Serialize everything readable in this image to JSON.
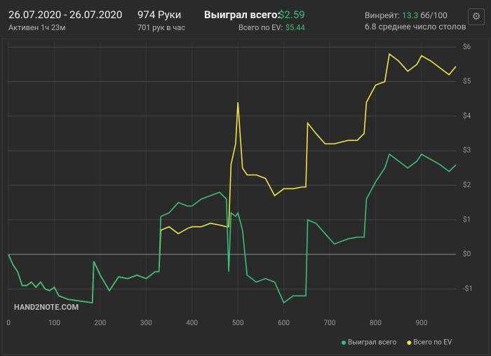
{
  "header": {
    "date_range": "26.07.2020 - 26.07.2020",
    "active": "Активен 1ч 23м",
    "hands": "974 Руки",
    "hands_per_hour": "701 рук в час",
    "won_label": "Выиграл всего:",
    "won_value": "$2.59",
    "ev_label": "Всего по EV:",
    "ev_value": "$5.44",
    "winrate_label": "Винрейт:",
    "winrate_value": "13.3",
    "winrate_unit": "бб/100",
    "tables": "6.8 среднее число столов",
    "watermark": "HAND2NOTE.COM"
  },
  "chart_data": {
    "type": "line",
    "x": [
      0,
      10,
      20,
      30,
      40,
      50,
      60,
      70,
      80,
      90,
      100,
      110,
      120,
      130,
      183,
      186,
      200,
      220,
      240,
      260,
      280,
      300,
      320,
      328,
      332,
      350,
      370,
      390,
      400,
      420,
      440,
      460,
      475,
      480,
      485,
      495,
      500,
      510,
      520,
      540,
      560,
      580,
      600,
      620,
      640,
      648,
      652,
      670,
      690,
      710,
      740,
      760,
      775,
      780,
      800,
      820,
      830,
      850,
      870,
      890,
      900,
      920,
      940,
      960,
      975
    ],
    "series": [
      {
        "name": "Всего по EV",
        "color": "#efe53d",
        "values": [
          0,
          -0.3,
          -0.5,
          -0.9,
          -0.9,
          -0.8,
          -0.95,
          -0.8,
          -1.0,
          -1.05,
          -0.95,
          -1.2,
          -1.25,
          -1.3,
          -1.4,
          -0.2,
          -0.6,
          -1.05,
          -0.65,
          -0.7,
          -0.6,
          -0.7,
          -0.5,
          -0.5,
          0.7,
          0.8,
          0.6,
          0.75,
          0.8,
          0.8,
          0.9,
          0.85,
          0.8,
          0.8,
          2.6,
          3.2,
          4.4,
          2.5,
          2.3,
          2.3,
          2.2,
          1.7,
          1.9,
          1.9,
          1.95,
          1.95,
          3.8,
          3.5,
          3.2,
          3.2,
          3.3,
          3.3,
          3.5,
          4.4,
          4.9,
          5.0,
          5.8,
          5.6,
          5.3,
          5.5,
          5.75,
          5.6,
          5.4,
          5.2,
          5.44
        ]
      },
      {
        "name": "Выиграл всего",
        "color": "#34c07a",
        "values": [
          0,
          -0.3,
          -0.5,
          -0.9,
          -0.9,
          -0.8,
          -0.95,
          -0.8,
          -1.0,
          -1.05,
          -0.95,
          -1.2,
          -1.25,
          -1.3,
          -1.4,
          -0.2,
          -0.6,
          -1.05,
          -0.65,
          -0.7,
          -0.6,
          -0.7,
          -0.5,
          -0.5,
          1.1,
          1.2,
          1.5,
          1.4,
          1.4,
          1.6,
          1.7,
          1.8,
          1.6,
          -0.5,
          1.2,
          1.1,
          1.2,
          0.7,
          -0.6,
          -0.8,
          -0.7,
          -0.8,
          -1.4,
          -1.2,
          -1.2,
          -1.2,
          1.0,
          0.9,
          0.6,
          0.3,
          0.45,
          0.5,
          0.5,
          1.6,
          2.1,
          2.5,
          2.9,
          2.7,
          2.5,
          2.7,
          2.9,
          2.75,
          2.6,
          2.4,
          2.59
        ]
      }
    ],
    "xlim": [
      0,
      975
    ],
    "xticks": [
      0,
      100,
      200,
      300,
      400,
      500,
      600,
      700,
      800,
      900
    ],
    "ylim": [
      -1.75,
      6.15
    ],
    "yticks": [
      {
        "value": -1,
        "label": "-$1"
      },
      {
        "value": 0,
        "label": "$0"
      },
      {
        "value": 1,
        "label": "$1"
      },
      {
        "value": 2,
        "label": "$2"
      },
      {
        "value": 3,
        "label": "$3"
      },
      {
        "value": 4,
        "label": "$4"
      },
      {
        "value": 5,
        "label": "$5"
      },
      {
        "value": 6,
        "label": "$6"
      }
    ],
    "grid": true
  }
}
